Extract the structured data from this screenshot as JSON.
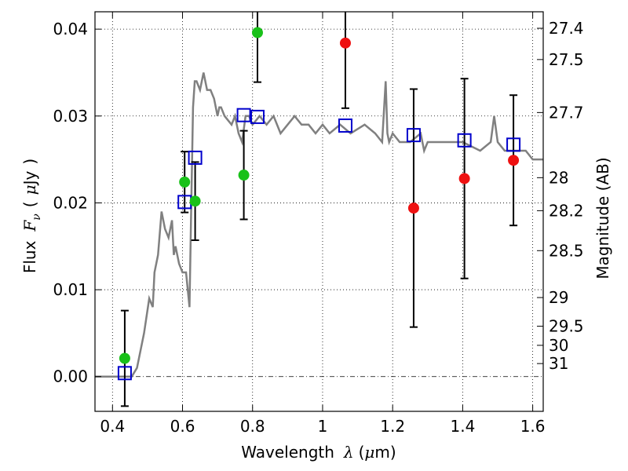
{
  "chart_data": {
    "type": "scatter",
    "xlabel": "Wavelength  λ (μm)",
    "xlabel_parts": {
      "text": "Wavelength",
      "symbol": "λ",
      "unit_open": "(",
      "unit_mu": "μ",
      "unit_rest": "m)"
    },
    "ylabel": "Flux  Fν ( μJy )",
    "ylabel_parts": {
      "text": "Flux",
      "symbol": "F",
      "sub": "ν",
      "paren_open": "(",
      "unit_mu": "μ",
      "unit_rest": "Jy",
      "paren_close": ")"
    },
    "y2label": "Magnitude (AB)",
    "xlim": [
      0.35,
      1.63
    ],
    "ylim": [
      -0.004,
      0.042
    ],
    "xticks": [
      {
        "v": 0.4,
        "label": "0.4"
      },
      {
        "v": 0.6,
        "label": "0.6"
      },
      {
        "v": 0.8,
        "label": "0.8"
      },
      {
        "v": 1.0,
        "label": "1"
      },
      {
        "v": 1.2,
        "label": "1.2"
      },
      {
        "v": 1.4,
        "label": "1.4"
      },
      {
        "v": 1.6,
        "label": "1.6"
      }
    ],
    "yticks": [
      {
        "v": 0.0,
        "label": "0.00"
      },
      {
        "v": 0.01,
        "label": "0.01"
      },
      {
        "v": 0.02,
        "label": "0.02"
      },
      {
        "v": 0.03,
        "label": "0.03"
      },
      {
        "v": 0.04,
        "label": "0.04"
      }
    ],
    "y2ticks": [
      {
        "mag": "27.4",
        "flux": 0.0401
      },
      {
        "mag": "27.5",
        "flux": 0.0365
      },
      {
        "mag": "27.7",
        "flux": 0.0304
      },
      {
        "mag": "28",
        "flux": 0.0229
      },
      {
        "mag": "28.2",
        "flux": 0.0191
      },
      {
        "mag": "28.5",
        "flux": 0.0145
      },
      {
        "mag": "29",
        "flux": 0.0091
      },
      {
        "mag": "29.5",
        "flux": 0.0058
      },
      {
        "mag": "30",
        "flux": 0.0036
      },
      {
        "mag": "31",
        "flux": 0.0015
      }
    ],
    "grid": true,
    "colors": {
      "sed": "#808080",
      "green": "#19c119",
      "red": "#ee1111",
      "blue": "#0000cc",
      "errorbar": "#000000"
    },
    "sed_model": {
      "x": [
        0.35,
        0.44,
        0.455,
        0.47,
        0.49,
        0.505,
        0.515,
        0.52,
        0.53,
        0.54,
        0.55,
        0.56,
        0.57,
        0.575,
        0.58,
        0.59,
        0.6,
        0.61,
        0.62,
        0.625,
        0.63,
        0.635,
        0.64,
        0.65,
        0.66,
        0.67,
        0.68,
        0.69,
        0.7,
        0.705,
        0.71,
        0.72,
        0.74,
        0.75,
        0.76,
        0.77,
        0.78,
        0.79,
        0.8,
        0.82,
        0.84,
        0.86,
        0.88,
        0.9,
        0.92,
        0.94,
        0.96,
        0.98,
        1.0,
        1.02,
        1.05,
        1.08,
        1.12,
        1.15,
        1.17,
        1.18,
        1.185,
        1.19,
        1.2,
        1.22,
        1.25,
        1.28,
        1.29,
        1.3,
        1.35,
        1.4,
        1.45,
        1.48,
        1.49,
        1.5,
        1.52,
        1.55,
        1.58,
        1.6,
        1.63
      ],
      "y": [
        0.0,
        0.0,
        0.0,
        0.001,
        0.005,
        0.009,
        0.008,
        0.012,
        0.014,
        0.019,
        0.017,
        0.016,
        0.018,
        0.014,
        0.015,
        0.013,
        0.012,
        0.012,
        0.008,
        0.02,
        0.031,
        0.034,
        0.034,
        0.033,
        0.035,
        0.033,
        0.033,
        0.032,
        0.03,
        0.031,
        0.031,
        0.03,
        0.029,
        0.03,
        0.028,
        0.027,
        0.03,
        0.03,
        0.029,
        0.03,
        0.029,
        0.03,
        0.028,
        0.029,
        0.03,
        0.029,
        0.029,
        0.028,
        0.029,
        0.028,
        0.029,
        0.028,
        0.029,
        0.028,
        0.027,
        0.034,
        0.028,
        0.027,
        0.028,
        0.027,
        0.027,
        0.028,
        0.026,
        0.027,
        0.027,
        0.027,
        0.026,
        0.027,
        0.03,
        0.027,
        0.026,
        0.026,
        0.026,
        0.025,
        0.025
      ]
    },
    "detections_green": [
      {
        "x": 0.435,
        "y": 0.0021,
        "err": 0.0055
      },
      {
        "x": 0.606,
        "y": 0.0224,
        "err": 0.0035
      },
      {
        "x": 0.636,
        "y": 0.0202,
        "err": 0.0045
      },
      {
        "x": 0.775,
        "y": 0.0232,
        "err": 0.0051
      },
      {
        "x": 0.814,
        "y": 0.0396,
        "err": 0.0057
      }
    ],
    "detections_red": [
      {
        "x": 1.065,
        "y": 0.0384,
        "err": 0.0075
      },
      {
        "x": 1.26,
        "y": 0.0194,
        "err": 0.0137
      },
      {
        "x": 1.405,
        "y": 0.0228,
        "err": 0.0115
      },
      {
        "x": 1.545,
        "y": 0.0249,
        "err": 0.0075
      }
    ],
    "model_photometry_blue": [
      {
        "x": 0.435,
        "y": 0.0004
      },
      {
        "x": 0.606,
        "y": 0.0201
      },
      {
        "x": 0.636,
        "y": 0.0252
      },
      {
        "x": 0.775,
        "y": 0.0301
      },
      {
        "x": 0.814,
        "y": 0.0299
      },
      {
        "x": 1.065,
        "y": 0.0289
      },
      {
        "x": 1.26,
        "y": 0.0278
      },
      {
        "x": 1.405,
        "y": 0.0272
      },
      {
        "x": 1.545,
        "y": 0.0267
      }
    ]
  }
}
